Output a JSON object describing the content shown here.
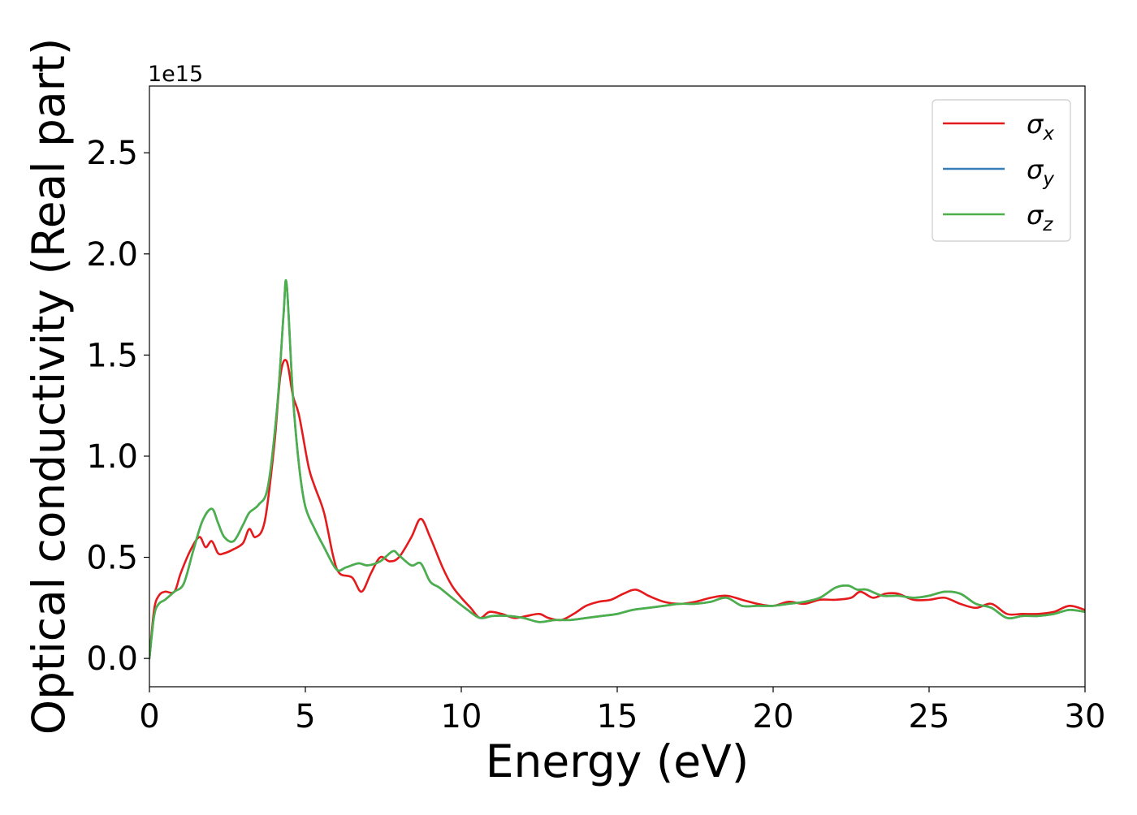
{
  "chart_data": {
    "type": "line",
    "title": "",
    "xlabel": "Energy (eV)",
    "ylabel": "Optical conductivity (Real part)",
    "y_offset_label": "1e15",
    "y_scale": 1000000000000000.0,
    "xlim": [
      0,
      30
    ],
    "ylim": [
      -0.14,
      2.83
    ],
    "x_ticks": [
      0,
      5,
      10,
      15,
      20,
      25,
      30
    ],
    "x_tick_labels": [
      "0",
      "5",
      "10",
      "15",
      "20",
      "25",
      "30"
    ],
    "y_ticks": [
      0.0,
      0.5,
      1.0,
      1.5,
      2.0,
      2.5
    ],
    "y_tick_labels": [
      "0.0",
      "0.5",
      "1.0",
      "1.5",
      "2.0",
      "2.5"
    ],
    "grid": false,
    "legend_position": "top-right",
    "legend": [
      {
        "symbol": "σ",
        "subscript": "x",
        "color": "#e41a1c"
      },
      {
        "symbol": "σ",
        "subscript": "y",
        "color": "#377eb8"
      },
      {
        "symbol": "σ",
        "subscript": "z",
        "color": "#4daf4a"
      }
    ],
    "series": [
      {
        "name": "σx",
        "color": "#e41a1c",
        "x": [
          0,
          0.15,
          0.3,
          0.5,
          0.8,
          1.0,
          1.3,
          1.6,
          1.8,
          2.0,
          2.2,
          2.4,
          2.7,
          3.0,
          3.2,
          3.4,
          3.7,
          4.0,
          4.2,
          4.4,
          4.6,
          4.8,
          5.1,
          5.3,
          5.6,
          5.9,
          6.1,
          6.5,
          6.8,
          7.1,
          7.4,
          7.7,
          8.0,
          8.4,
          8.7,
          9.0,
          9.4,
          9.7,
          10.0,
          10.3,
          10.6,
          10.9,
          11.3,
          11.7,
          12.1,
          12.5,
          12.8,
          13.2,
          13.6,
          14.0,
          14.4,
          14.8,
          15.2,
          15.6,
          16.0,
          16.5,
          17.0,
          17.5,
          18.0,
          18.5,
          19.0,
          19.5,
          20.0,
          20.5,
          21.0,
          21.5,
          22.0,
          22.5,
          22.8,
          23.2,
          23.6,
          24.0,
          24.5,
          25.0,
          25.5,
          26.0,
          26.5,
          27.0,
          27.5,
          28.0,
          28.5,
          29.0,
          29.5,
          30.0
        ],
        "y": [
          0.0,
          0.24,
          0.31,
          0.33,
          0.33,
          0.42,
          0.53,
          0.6,
          0.55,
          0.58,
          0.52,
          0.52,
          0.54,
          0.57,
          0.64,
          0.6,
          0.68,
          1.05,
          1.4,
          1.47,
          1.3,
          1.2,
          0.95,
          0.85,
          0.72,
          0.5,
          0.42,
          0.4,
          0.33,
          0.42,
          0.5,
          0.48,
          0.5,
          0.6,
          0.69,
          0.6,
          0.45,
          0.36,
          0.3,
          0.25,
          0.2,
          0.23,
          0.22,
          0.2,
          0.21,
          0.22,
          0.2,
          0.19,
          0.22,
          0.26,
          0.28,
          0.29,
          0.32,
          0.34,
          0.31,
          0.28,
          0.27,
          0.28,
          0.3,
          0.31,
          0.29,
          0.27,
          0.26,
          0.28,
          0.27,
          0.29,
          0.29,
          0.3,
          0.33,
          0.3,
          0.32,
          0.32,
          0.29,
          0.29,
          0.3,
          0.27,
          0.25,
          0.27,
          0.22,
          0.22,
          0.22,
          0.23,
          0.26,
          0.24
        ]
      },
      {
        "name": "σy",
        "color": "#377eb8",
        "x": [
          0,
          0.15,
          0.3,
          0.5,
          0.8,
          1.1,
          1.4,
          1.7,
          2.0,
          2.2,
          2.4,
          2.7,
          3.0,
          3.2,
          3.5,
          3.8,
          4.1,
          4.3,
          4.4,
          4.6,
          4.8,
          5.0,
          5.3,
          5.6,
          6.0,
          6.3,
          6.7,
          7.0,
          7.4,
          7.8,
          8.0,
          8.4,
          8.7,
          9.0,
          9.3,
          9.7,
          10.2,
          10.6,
          11.0,
          11.5,
          12.0,
          12.5,
          13.0,
          13.5,
          14.0,
          14.5,
          15.0,
          15.5,
          16.0,
          16.5,
          17.0,
          17.5,
          18.0,
          18.5,
          19.0,
          19.5,
          20.0,
          20.5,
          21.0,
          21.5,
          22.0,
          22.4,
          22.7,
          23.0,
          23.5,
          24.0,
          24.5,
          25.0,
          25.5,
          26.0,
          26.5,
          27.0,
          27.5,
          28.0,
          28.5,
          29.0,
          29.5,
          30.0
        ],
        "y": [
          0.0,
          0.21,
          0.27,
          0.29,
          0.33,
          0.37,
          0.53,
          0.68,
          0.74,
          0.67,
          0.6,
          0.58,
          0.66,
          0.72,
          0.76,
          0.85,
          1.25,
          1.7,
          1.85,
          1.3,
          0.95,
          0.75,
          0.64,
          0.55,
          0.44,
          0.45,
          0.47,
          0.46,
          0.48,
          0.53,
          0.51,
          0.46,
          0.47,
          0.38,
          0.35,
          0.3,
          0.24,
          0.2,
          0.21,
          0.21,
          0.2,
          0.18,
          0.19,
          0.19,
          0.2,
          0.21,
          0.22,
          0.24,
          0.25,
          0.26,
          0.27,
          0.27,
          0.28,
          0.3,
          0.26,
          0.26,
          0.26,
          0.27,
          0.28,
          0.3,
          0.35,
          0.36,
          0.34,
          0.34,
          0.31,
          0.31,
          0.3,
          0.31,
          0.33,
          0.32,
          0.27,
          0.25,
          0.2,
          0.21,
          0.21,
          0.22,
          0.24,
          0.23
        ]
      },
      {
        "name": "σz",
        "color": "#4daf4a",
        "x": [
          0,
          0.15,
          0.3,
          0.5,
          0.8,
          1.1,
          1.4,
          1.7,
          2.0,
          2.2,
          2.4,
          2.7,
          3.0,
          3.2,
          3.5,
          3.8,
          4.1,
          4.3,
          4.4,
          4.6,
          4.8,
          5.0,
          5.3,
          5.6,
          6.0,
          6.3,
          6.7,
          7.0,
          7.4,
          7.8,
          8.0,
          8.4,
          8.7,
          9.0,
          9.3,
          9.7,
          10.2,
          10.6,
          11.0,
          11.5,
          12.0,
          12.5,
          13.0,
          13.5,
          14.0,
          14.5,
          15.0,
          15.5,
          16.0,
          16.5,
          17.0,
          17.5,
          18.0,
          18.5,
          19.0,
          19.5,
          20.0,
          20.5,
          21.0,
          21.5,
          22.0,
          22.4,
          22.7,
          23.0,
          23.5,
          24.0,
          24.5,
          25.0,
          25.5,
          26.0,
          26.5,
          27.0,
          27.5,
          28.0,
          28.5,
          29.0,
          29.5,
          30.0
        ],
        "y": [
          0.0,
          0.21,
          0.27,
          0.29,
          0.33,
          0.37,
          0.53,
          0.68,
          0.74,
          0.67,
          0.6,
          0.58,
          0.66,
          0.72,
          0.76,
          0.85,
          1.25,
          1.7,
          1.85,
          1.3,
          0.95,
          0.75,
          0.64,
          0.55,
          0.44,
          0.45,
          0.47,
          0.46,
          0.48,
          0.53,
          0.51,
          0.46,
          0.47,
          0.38,
          0.35,
          0.3,
          0.24,
          0.2,
          0.21,
          0.21,
          0.2,
          0.18,
          0.19,
          0.19,
          0.2,
          0.21,
          0.22,
          0.24,
          0.25,
          0.26,
          0.27,
          0.27,
          0.28,
          0.3,
          0.26,
          0.26,
          0.26,
          0.27,
          0.28,
          0.3,
          0.35,
          0.36,
          0.34,
          0.34,
          0.31,
          0.31,
          0.3,
          0.31,
          0.33,
          0.32,
          0.27,
          0.25,
          0.2,
          0.21,
          0.21,
          0.22,
          0.24,
          0.23
        ]
      }
    ]
  }
}
